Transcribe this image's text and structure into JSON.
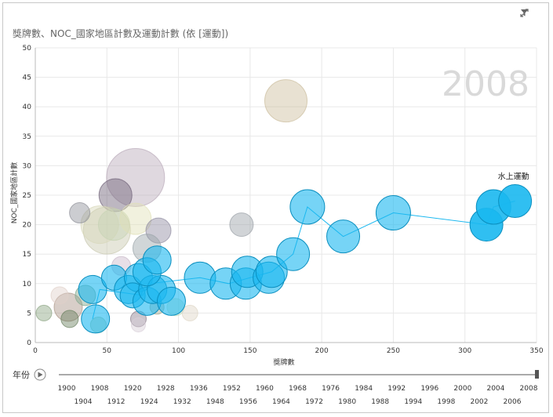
{
  "title": "獎牌數、NOC_國家地區計數及運動計數 (依 [運動])",
  "toolbar": {
    "filter_icon": "funnel-icon",
    "expand_icon": "expand-icon"
  },
  "colors": {
    "highlight": "#1ab8f0",
    "highlight_stroke": "#0b8fbf",
    "grid": "#e8e8e8",
    "track": "#555555"
  },
  "play_axis": {
    "label": "年份",
    "play_icon": "play-icon",
    "current": "2008",
    "years_top": [
      "1900",
      "1908",
      "1920",
      "1928",
      "1936",
      "1952",
      "1960",
      "1968",
      "1976",
      "1984",
      "1992",
      "1996",
      "2000",
      "2004",
      "2008"
    ],
    "years_bottom": [
      "1904",
      "1912",
      "1924",
      "1932",
      "1948",
      "1956",
      "1964",
      "1972",
      "1980",
      "1988",
      "1994",
      "1998",
      "2002",
      "2006"
    ]
  },
  "chart_data": {
    "type": "scatter",
    "title": "獎牌數、NOC_國家地區計數及運動計數 (依 [運動])",
    "xlabel": "獎牌數",
    "ylabel": "NOC_國家地區計數",
    "xlim": [
      0,
      350
    ],
    "ylim": [
      0,
      50
    ],
    "xticks": [
      0,
      50,
      100,
      150,
      200,
      250,
      300,
      350
    ],
    "yticks": [
      0,
      5,
      10,
      15,
      20,
      25,
      30,
      35,
      40,
      45,
      50
    ],
    "grid": true,
    "highlighted_series": "水上運動",
    "highlight_trail": [
      {
        "x": 40,
        "y": 4
      },
      {
        "x": 45,
        "y": 9
      },
      {
        "x": 75,
        "y": 8
      },
      {
        "x": 80,
        "y": 10
      },
      {
        "x": 115,
        "y": 11
      },
      {
        "x": 135,
        "y": 10
      },
      {
        "x": 150,
        "y": 11
      },
      {
        "x": 165,
        "y": 12
      },
      {
        "x": 180,
        "y": 15
      },
      {
        "x": 190,
        "y": 23
      },
      {
        "x": 215,
        "y": 18
      },
      {
        "x": 250,
        "y": 22
      },
      {
        "x": 315,
        "y": 20
      },
      {
        "x": 320,
        "y": 23
      },
      {
        "x": 335,
        "y": 24
      }
    ],
    "highlight_bubbles": [
      {
        "x": 42,
        "y": 4,
        "r": 18
      },
      {
        "x": 40,
        "y": 9,
        "r": 18
      },
      {
        "x": 55,
        "y": 11,
        "r": 16
      },
      {
        "x": 65,
        "y": 9,
        "r": 18
      },
      {
        "x": 72,
        "y": 11,
        "r": 18
      },
      {
        "x": 68,
        "y": 8,
        "r": 16
      },
      {
        "x": 78,
        "y": 7,
        "r": 18
      },
      {
        "x": 82,
        "y": 9,
        "r": 18
      },
      {
        "x": 88,
        "y": 9,
        "r": 18
      },
      {
        "x": 78,
        "y": 12,
        "r": 18
      },
      {
        "x": 85,
        "y": 14,
        "r": 18
      },
      {
        "x": 95,
        "y": 7,
        "r": 18
      },
      {
        "x": 115,
        "y": 11,
        "r": 20
      },
      {
        "x": 133,
        "y": 10,
        "r": 20
      },
      {
        "x": 147,
        "y": 10,
        "r": 20
      },
      {
        "x": 148,
        "y": 12,
        "r": 20
      },
      {
        "x": 163,
        "y": 11,
        "r": 20
      },
      {
        "x": 165,
        "y": 12,
        "r": 20
      },
      {
        "x": 180,
        "y": 15,
        "r": 21
      },
      {
        "x": 190,
        "y": 23,
        "r": 22
      },
      {
        "x": 215,
        "y": 18,
        "r": 21
      },
      {
        "x": 250,
        "y": 22,
        "r": 22
      },
      {
        "x": 315,
        "y": 20,
        "r": 21
      },
      {
        "x": 320,
        "y": 23,
        "r": 22
      },
      {
        "x": 335,
        "y": 24,
        "r": 21
      }
    ],
    "other_bubbles": [
      {
        "x": 70,
        "y": 28,
        "r": 37,
        "color": "#b9a9b9"
      },
      {
        "x": 175,
        "y": 41,
        "r": 27,
        "color": "#cbbc9b"
      },
      {
        "x": 56,
        "y": 25,
        "r": 21,
        "color": "#6d5f76"
      },
      {
        "x": 50,
        "y": 19,
        "r": 30,
        "color": "#c7c7ae"
      },
      {
        "x": 45,
        "y": 20,
        "r": 24,
        "color": "#d7d7b9"
      },
      {
        "x": 55,
        "y": 20,
        "r": 20,
        "color": "#c6d3b3"
      },
      {
        "x": 70,
        "y": 21,
        "r": 20,
        "color": "#dfdfb6"
      },
      {
        "x": 86,
        "y": 19,
        "r": 16,
        "color": "#8e8aa0"
      },
      {
        "x": 31,
        "y": 22,
        "r": 13,
        "color": "#8e9098"
      },
      {
        "x": 144,
        "y": 20,
        "r": 15,
        "color": "#9aa0a6"
      },
      {
        "x": 78,
        "y": 16,
        "r": 18,
        "color": "#9aa4a8"
      },
      {
        "x": 60,
        "y": 13,
        "r": 12,
        "color": "#c9b9c9"
      },
      {
        "x": 23,
        "y": 6,
        "r": 18,
        "color": "#a89384"
      },
      {
        "x": 17,
        "y": 8,
        "r": 11,
        "color": "#e0d0c9"
      },
      {
        "x": 35,
        "y": 8,
        "r": 13,
        "color": "#82a88e"
      },
      {
        "x": 6,
        "y": 5,
        "r": 10,
        "color": "#8aa381"
      },
      {
        "x": 24,
        "y": 4,
        "r": 11,
        "color": "#6a8060"
      },
      {
        "x": 44,
        "y": 3,
        "r": 10,
        "color": "#9fc3a0"
      },
      {
        "x": 72,
        "y": 4,
        "r": 10,
        "color": "#8c7e8d"
      },
      {
        "x": 72,
        "y": 3,
        "r": 9,
        "color": "#d8cfd8"
      },
      {
        "x": 85,
        "y": 6,
        "r": 9,
        "color": "#a4a890"
      },
      {
        "x": 98,
        "y": 6,
        "r": 11,
        "color": "#c3dfc2"
      },
      {
        "x": 108,
        "y": 5,
        "r": 10,
        "color": "#ddd5c5"
      }
    ],
    "annotations": [
      {
        "label": "水上運動",
        "x": 335,
        "y": 24,
        "highlight": true
      }
    ]
  }
}
